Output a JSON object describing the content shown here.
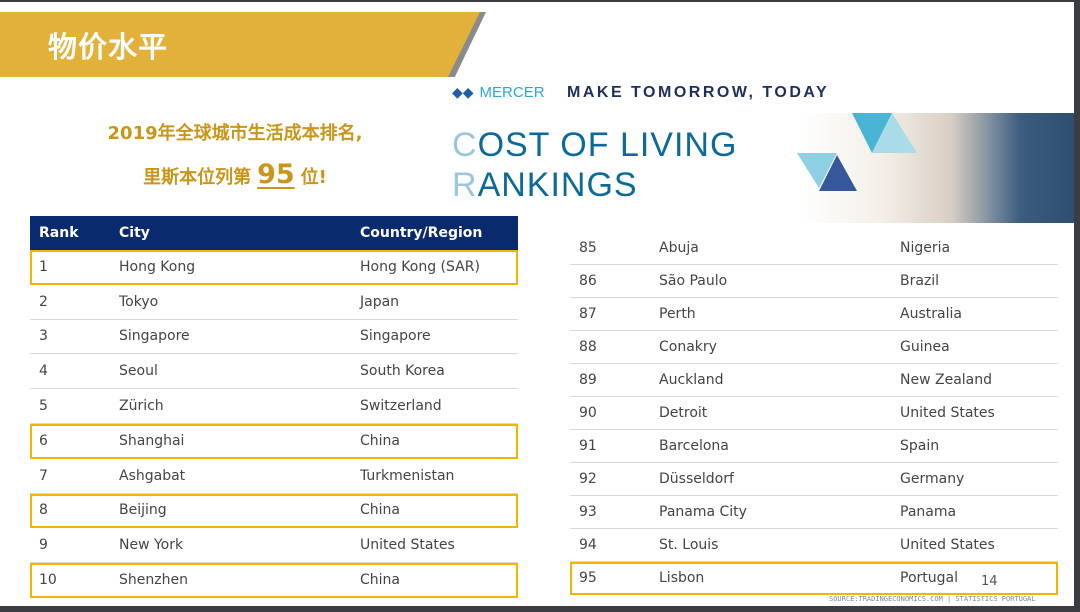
{
  "header": {
    "title": "物价水平"
  },
  "subtitle": {
    "line1": "2019年全球城市生活成本排名,",
    "line2_pre": "里斯本位列第",
    "rank": "95",
    "line2_post": "位!"
  },
  "mercer": {
    "logo_text": "MERCER",
    "tagline": "MAKE TOMORROW, TODAY",
    "title_line1_first": "C",
    "title_line1_rest": "OST OF LIVING",
    "title_line2_first": "R",
    "title_line2_rest": "ANKINGS"
  },
  "colors": {
    "banner": "#e1b13a",
    "highlight": "#f5b400",
    "table_header": "#0a2a6e",
    "text_gold": "#c9961a"
  },
  "left_table": {
    "headers": [
      "Rank",
      "City",
      "Country/Region"
    ],
    "rows": [
      [
        "1",
        "Hong Kong",
        "Hong Kong (SAR)",
        true
      ],
      [
        "2",
        "Tokyo",
        "Japan",
        false
      ],
      [
        "3",
        "Singapore",
        "Singapore",
        false
      ],
      [
        "4",
        "Seoul",
        "South Korea",
        false
      ],
      [
        "5",
        "Zürich",
        "Switzerland",
        false
      ],
      [
        "6",
        "Shanghai",
        "China",
        true
      ],
      [
        "7",
        "Ashgabat",
        "Turkmenistan",
        false
      ],
      [
        "8",
        "Beijing",
        "China",
        true
      ],
      [
        "9",
        "New York",
        "United States",
        false
      ],
      [
        "10",
        "Shenzhen",
        "China",
        true
      ]
    ]
  },
  "right_table": {
    "rows": [
      [
        "85",
        "Abuja",
        "Nigeria",
        false
      ],
      [
        "86",
        "São Paulo",
        "Brazil",
        false
      ],
      [
        "87",
        "Perth",
        "Australia",
        false
      ],
      [
        "88",
        "Conakry",
        "Guinea",
        false
      ],
      [
        "89",
        "Auckland",
        "New Zealand",
        false
      ],
      [
        "90",
        "Detroit",
        "United States",
        false
      ],
      [
        "91",
        "Barcelona",
        "Spain",
        false
      ],
      [
        "92",
        "Düsseldorf",
        "Germany",
        false
      ],
      [
        "93",
        "Panama City",
        "Panama",
        false
      ],
      [
        "94",
        "St. Louis",
        "United States",
        false
      ],
      [
        "95",
        "Lisbon",
        "Portugal",
        true
      ]
    ]
  },
  "page_number": "14",
  "source": "SOURCE:TRADINGECONOMICS.COM  |  STATISTICS PORTUGAL"
}
